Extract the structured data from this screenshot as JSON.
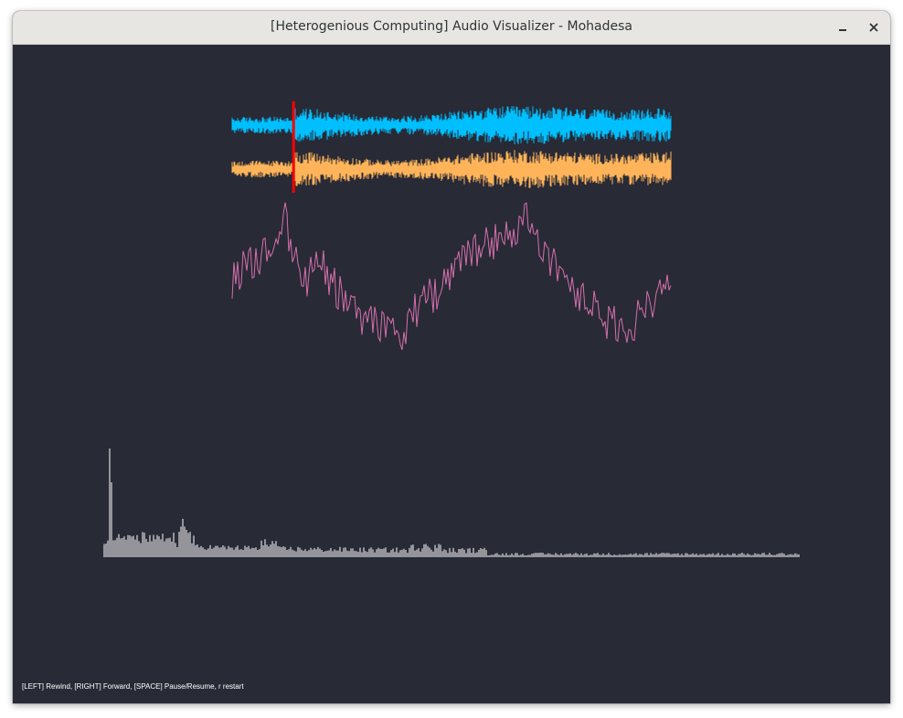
{
  "window": {
    "title": "[Heterogenious Computing] Audio Visualizer - Mohadesa",
    "minimize_icon": "minimize-icon",
    "close_icon": "close-icon"
  },
  "visualizer": {
    "background": "#282a36",
    "channel_left_color": "#00bfff",
    "channel_right_color": "#ffb459",
    "envelope_color": "#d670ad",
    "spectrum_color": "#ffffff",
    "playhead_color": "#ff0000",
    "playhead_position": 0.14
  },
  "help_text": "[LEFT] Rewind, [RIGHT] Forward, [SPACE] Pause/Resume, r restart"
}
